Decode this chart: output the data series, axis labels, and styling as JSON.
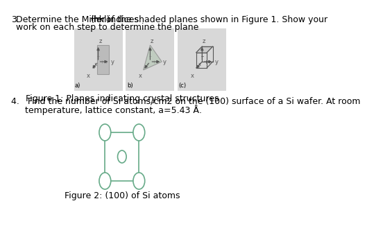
{
  "title_num": "3.",
  "title_text": "Determine the Miller indices ",
  "title_hkl": "(hkl)",
  "title_rest": " of the shaded planes shown in Figure 1. Show your",
  "title_line2": "work on each step to determine the plane",
  "fig1_caption": "Figure 1: Planes indicating crystal structures",
  "fig2_caption": "Figure 2: (100) of Si atoms",
  "q4_line1": "4.   Find the number of Si atoms/cm2 on the (100) surface of a Si wafer. At room",
  "q4_line2": "     temperature, lattice constant, a=5.43 Å.",
  "bg_color": "#ffffff",
  "panel_bg": "#d8d8d8",
  "text_color": "#000000",
  "font_size": 9,
  "crystal_line_color": "#555555",
  "plane_fill_a": "#aaaaaa",
  "plane_fill_b": "#bbccbb",
  "si_square_color": "#66aa88",
  "si_circle_color": "#66aa88"
}
